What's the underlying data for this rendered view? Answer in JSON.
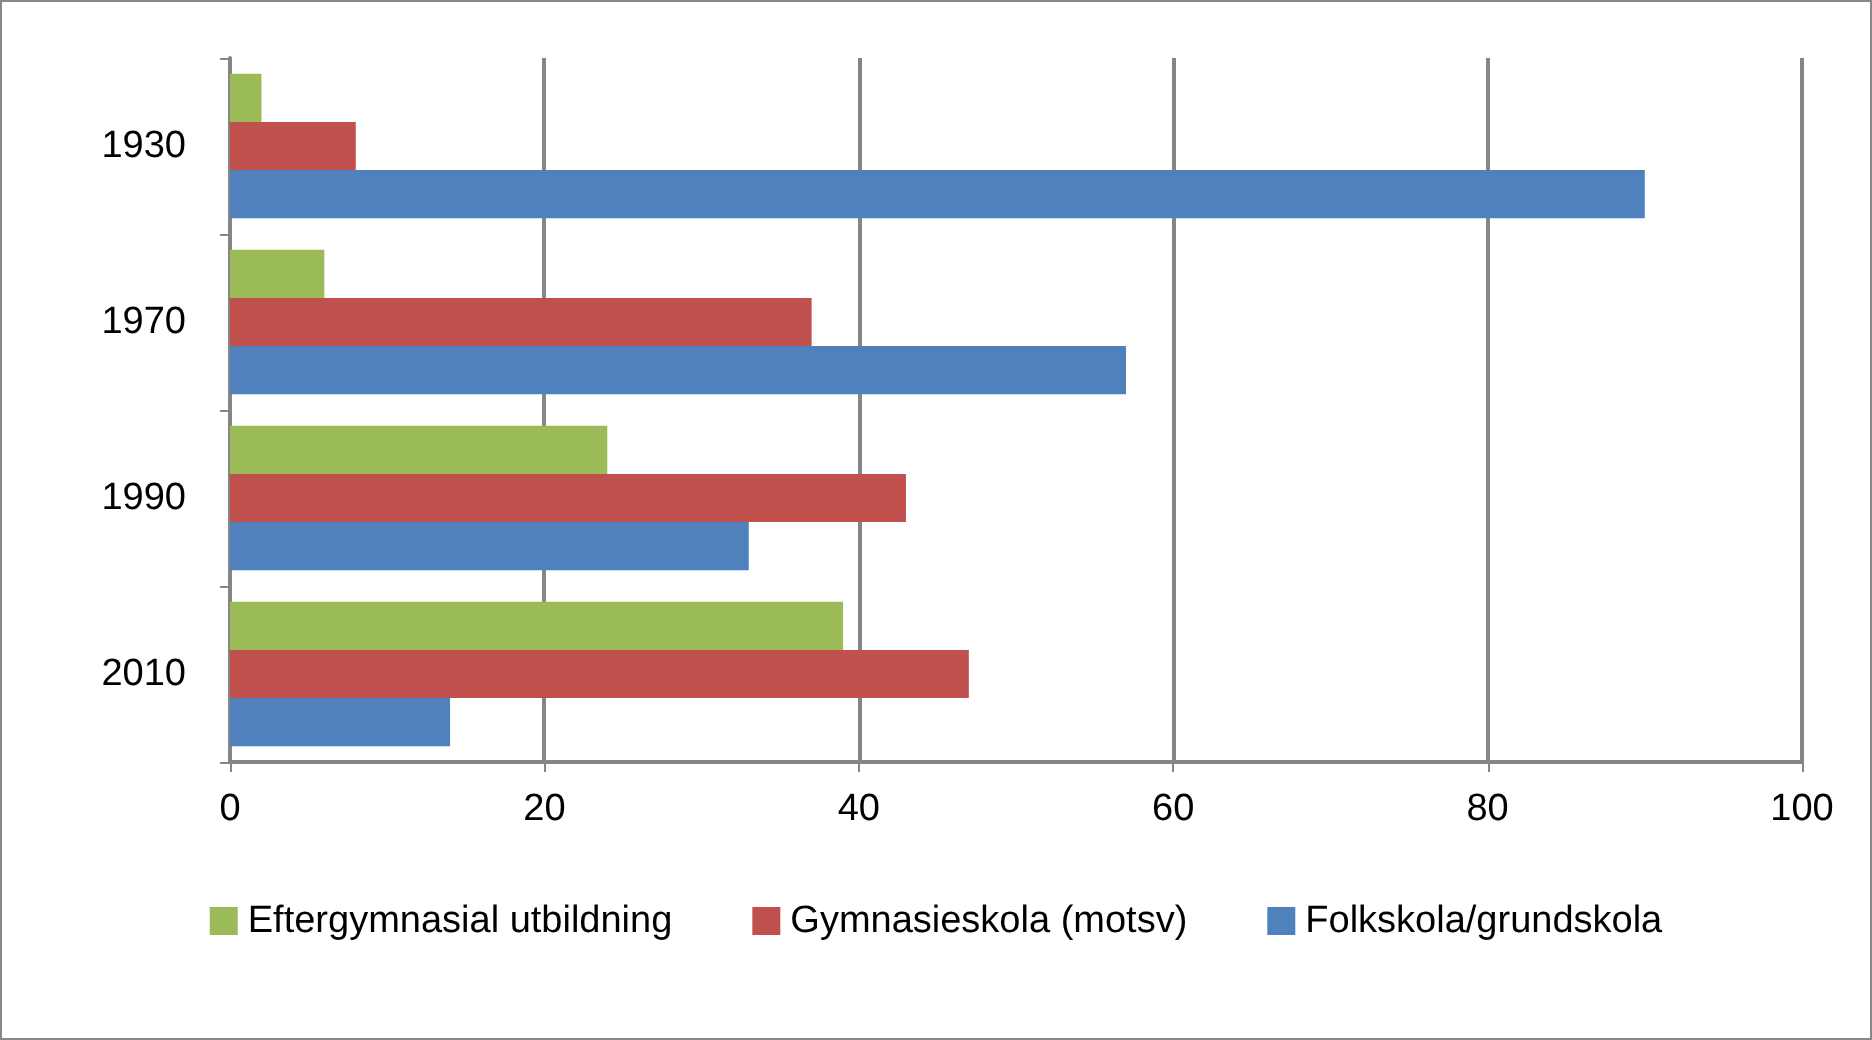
{
  "chart_data": {
    "type": "bar",
    "orientation": "horizontal",
    "categories": [
      "1930",
      "1970",
      "1990",
      "2010"
    ],
    "series": [
      {
        "name": "Eftergymnasial utbildning",
        "color": "#9bbb59",
        "values": [
          2,
          6,
          24,
          39
        ]
      },
      {
        "name": "Gymnasieskola (motsv)",
        "color": "#c0504d",
        "values": [
          8,
          37,
          43,
          47
        ]
      },
      {
        "name": "Folkskola/grundskola",
        "color": "#4f81bd",
        "values": [
          90,
          57,
          33,
          14
        ]
      }
    ],
    "xlim": [
      0,
      100
    ],
    "xticks": [
      0,
      20,
      40,
      60,
      80,
      100
    ],
    "grid": "x",
    "legend": "bottom"
  }
}
